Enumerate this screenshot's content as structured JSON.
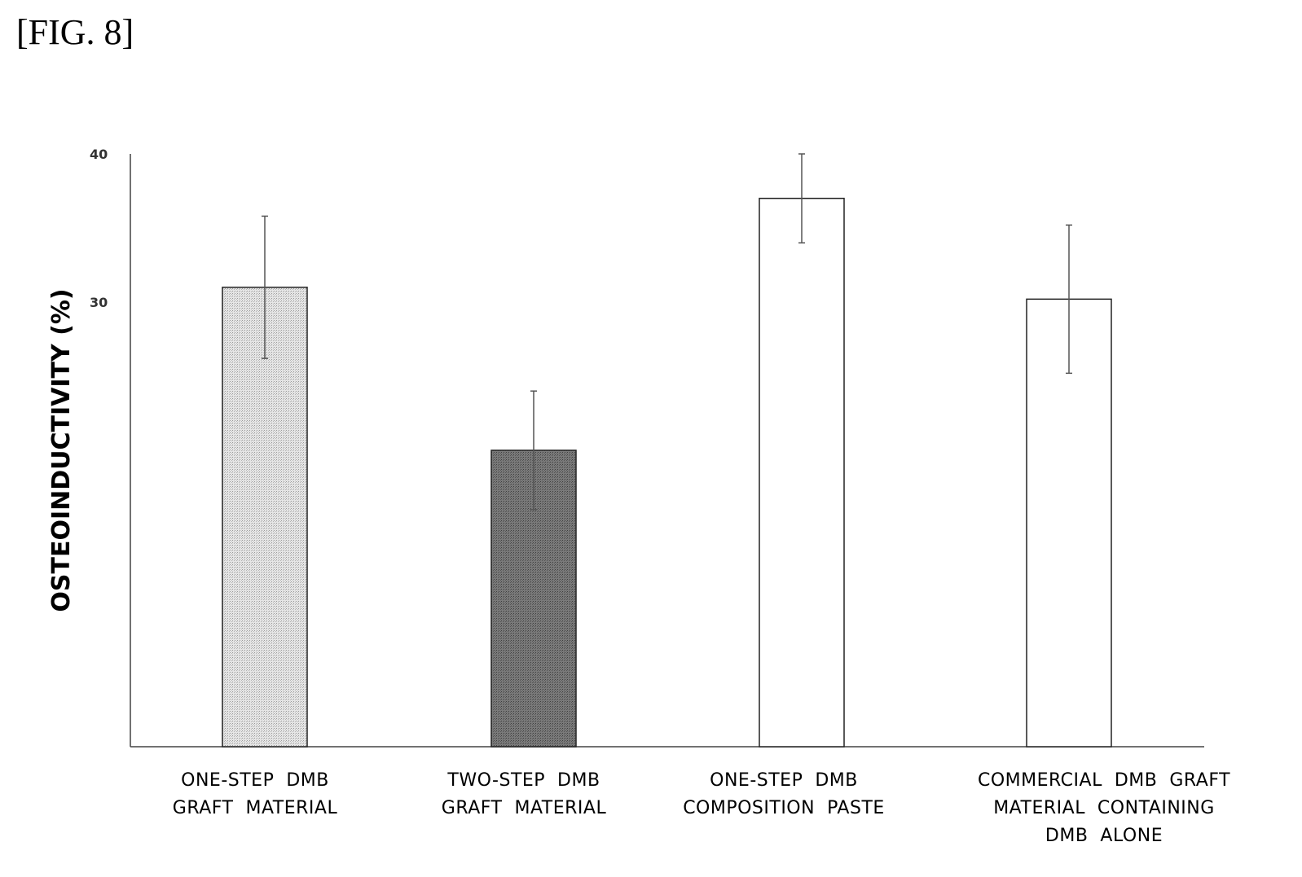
{
  "figure_label": "[FIG. 8]",
  "colors": {
    "bar_light": "#d9d9d9",
    "bar_dark": "#6e6e6e",
    "bar_white": "#ffffff",
    "axis": "#444444"
  },
  "chart_data": {
    "type": "bar",
    "title": "",
    "xlabel": "",
    "ylabel": "OSTEOINDUCTIVITY (%)",
    "ylim": [
      0,
      40
    ],
    "yticks": [
      "30",
      "40"
    ],
    "ytick_values": [
      30,
      40
    ],
    "grid": false,
    "categories": [
      [
        "ONE-STEP  DMB",
        "GRAFT  MATERIAL"
      ],
      [
        "TWO-STEP  DMB",
        "GRAFT  MATERIAL"
      ],
      [
        "ONE-STEP  DMB",
        "COMPOSITION  PASTE"
      ],
      [
        "COMMERCIAL  DMB  GRAFT",
        "MATERIAL  CONTAINING",
        "DMB  ALONE"
      ]
    ],
    "values": [
      31,
      20,
      37,
      30.2
    ],
    "error": [
      4.8,
      4,
      3,
      5
    ],
    "bar_colors": [
      "#d9d9d9",
      "#6e6e6e",
      "#ffffff",
      "#ffffff"
    ]
  }
}
